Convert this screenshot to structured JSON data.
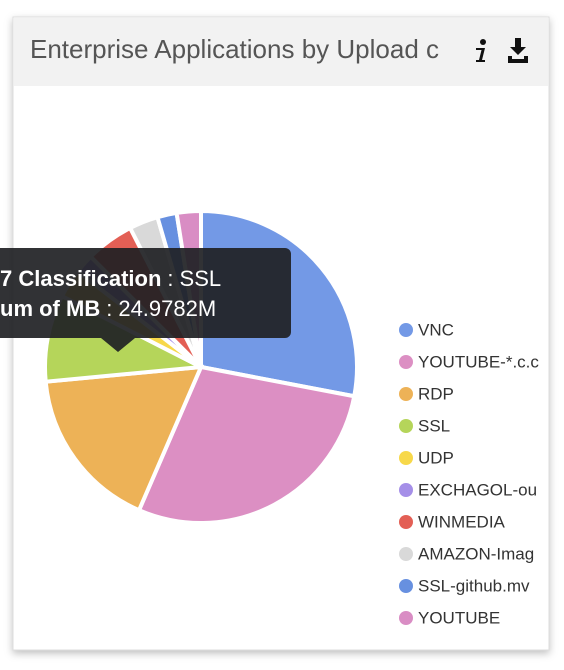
{
  "chart_data": {
    "type": "pie",
    "title": "Enterprise Applications by Upload c",
    "categories": [
      "VNC",
      "YOUTUBE-*.c.c",
      "RDP",
      "SSL",
      "UDP",
      "EXCHAGOL-ou",
      "WINMEDIA",
      "AMAZON-Imag",
      "SSL-github.mv",
      "YOUTUBE"
    ],
    "values": [
      28,
      28.5,
      17,
      9,
      3,
      2,
      5,
      3,
      2,
      2.5
    ],
    "colors": [
      "#7399e6",
      "#dc8fc3",
      "#edb257",
      "#b5d55a",
      "#f7d84a",
      "#a58fe8",
      "#e35f55",
      "#d9d9d9",
      "#6790e0",
      "#d98dc4"
    ],
    "tooltip": {
      "separator": ":",
      "rows": [
        {
          "key": "7 Classification",
          "value": "SSL"
        },
        {
          "key": "um of MB",
          "value": "24.9782M"
        }
      ]
    }
  }
}
